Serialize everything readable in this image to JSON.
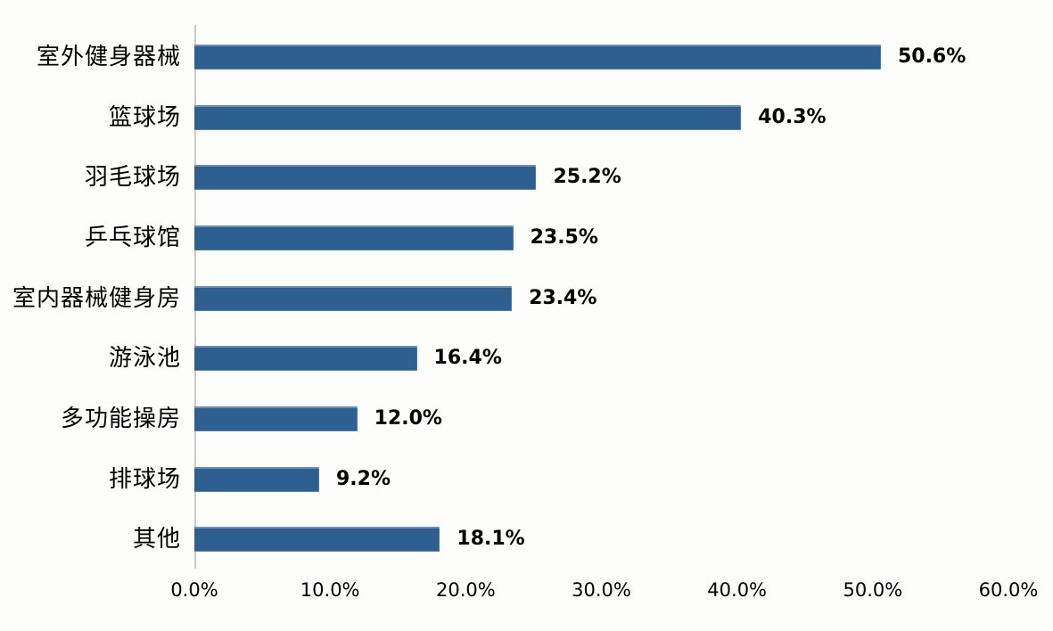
{
  "chart_data": {
    "type": "bar",
    "orientation": "horizontal",
    "title": "",
    "xlabel": "",
    "ylabel": "",
    "categories": [
      "室外健身器械",
      "篮球场",
      "羽毛球场",
      "乒乓球馆",
      "室内器械健身房",
      "游泳池",
      "多功能操房",
      "排球场",
      "其他"
    ],
    "values": [
      50.6,
      40.3,
      25.2,
      23.5,
      23.4,
      16.4,
      12.0,
      9.2,
      18.1
    ],
    "value_labels": [
      "50.6%",
      "40.3%",
      "25.2%",
      "23.5%",
      "23.4%",
      "16.4%",
      "12.0%",
      "9.2%",
      "18.1%"
    ],
    "x_tick_labels": [
      "0.0%",
      "10.0%",
      "20.0%",
      "30.0%",
      "40.0%",
      "50.0%",
      "60.0%"
    ],
    "xlim": [
      0,
      60
    ],
    "grid": false,
    "legend_position": "none",
    "bar_color": "#2d5f91",
    "axis_line_color": "#ccc8c2",
    "text_color": "#000000",
    "background_color": "#fdfdfc"
  }
}
